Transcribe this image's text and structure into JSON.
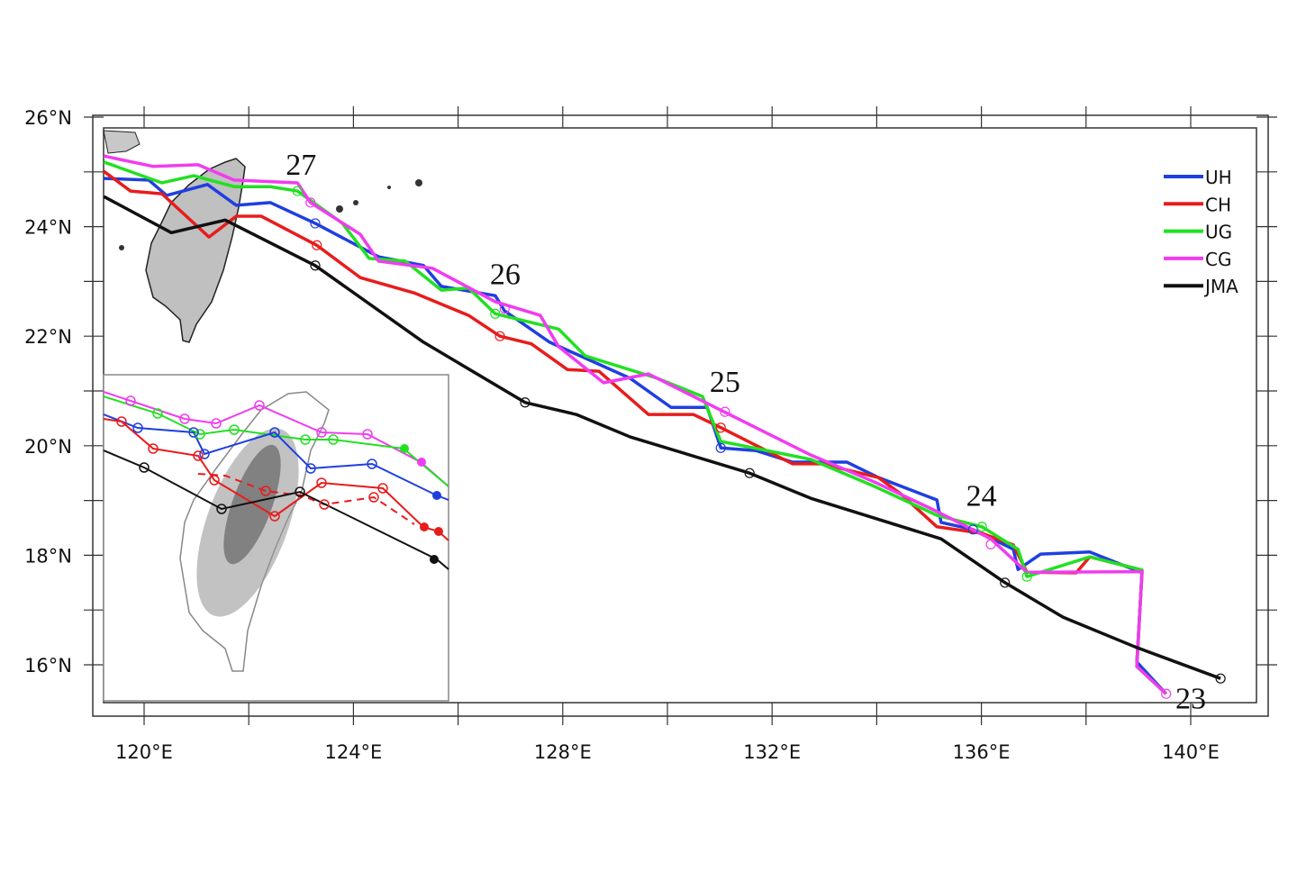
{
  "chart_data": {
    "type": "line",
    "title": "",
    "xlabel": "",
    "ylabel": "",
    "xlim": [
      119,
      141.5
    ],
    "ylim": [
      15.1,
      26
    ],
    "x_ticks": [
      {
        "v": 120,
        "label": "120°E"
      },
      {
        "v": 124,
        "label": "124°E"
      },
      {
        "v": 128,
        "label": "128°E"
      },
      {
        "v": 132,
        "label": "132°E"
      },
      {
        "v": 136,
        "label": "136°E"
      },
      {
        "v": 140,
        "label": "140°E"
      }
    ],
    "y_ticks": [
      {
        "v": 26,
        "label": "26°N"
      },
      {
        "v": 24,
        "label": "24°N"
      },
      {
        "v": 22,
        "label": "22°N"
      },
      {
        "v": 20,
        "label": "20°N"
      },
      {
        "v": 18,
        "label": "18°N"
      },
      {
        "v": 16,
        "label": "16°N"
      }
    ],
    "legend_position": "top-right",
    "day_labels": [
      {
        "text": "27",
        "lon": 123.0,
        "lat": 24.95
      },
      {
        "text": "26",
        "lon": 126.9,
        "lat": 22.95
      },
      {
        "text": "25",
        "lon": 131.1,
        "lat": 20.98
      },
      {
        "text": "24",
        "lon": 136.0,
        "lat": 18.9
      },
      {
        "text": "23",
        "lon": 140.0,
        "lat": 15.2
      }
    ],
    "series": [
      {
        "name": "UH",
        "color": "#1f3fe0",
        "points": [
          [
            119.23,
            24.88
          ],
          [
            120.09,
            24.85
          ],
          [
            120.43,
            24.57
          ],
          [
            121.21,
            24.77
          ],
          [
            121.76,
            24.39
          ],
          [
            122.41,
            24.44
          ],
          [
            123.27,
            24.06
          ],
          [
            124.48,
            23.45
          ],
          [
            125.34,
            23.29
          ],
          [
            125.68,
            22.91
          ],
          [
            126.71,
            22.74
          ],
          [
            126.89,
            22.46
          ],
          [
            127.75,
            21.89
          ],
          [
            129.29,
            21.23
          ],
          [
            130.07,
            20.7
          ],
          [
            130.76,
            20.7
          ],
          [
            131.02,
            19.96
          ],
          [
            131.7,
            19.91
          ],
          [
            132.39,
            19.7
          ],
          [
            133.43,
            19.7
          ],
          [
            134.03,
            19.42
          ],
          [
            135.15,
            19.01
          ],
          [
            135.23,
            18.6
          ],
          [
            135.84,
            18.47
          ],
          [
            136.61,
            18.11
          ],
          [
            136.7,
            17.74
          ],
          [
            137.13,
            18.02
          ],
          [
            138.07,
            18.06
          ],
          [
            139.07,
            17.68
          ],
          [
            138.97,
            16.05
          ],
          [
            139.53,
            15.47
          ]
        ]
      },
      {
        "name": "CH",
        "color": "#e81c1c",
        "points": [
          [
            119.23,
            25.01
          ],
          [
            119.74,
            24.65
          ],
          [
            120.34,
            24.6
          ],
          [
            121.24,
            23.81
          ],
          [
            121.76,
            24.19
          ],
          [
            122.24,
            24.19
          ],
          [
            123.3,
            23.66
          ],
          [
            124.13,
            23.07
          ],
          [
            125.16,
            22.79
          ],
          [
            126.2,
            22.38
          ],
          [
            126.8,
            22.0
          ],
          [
            127.4,
            21.86
          ],
          [
            128.09,
            21.39
          ],
          [
            128.69,
            21.36
          ],
          [
            129.64,
            20.57
          ],
          [
            130.5,
            20.57
          ],
          [
            131.02,
            20.33
          ],
          [
            132.39,
            19.67
          ],
          [
            132.94,
            19.67
          ],
          [
            134.03,
            19.42
          ],
          [
            134.46,
            19.12
          ],
          [
            135.15,
            18.52
          ],
          [
            136.01,
            18.4
          ],
          [
            136.61,
            18.19
          ],
          [
            136.87,
            17.69
          ],
          [
            137.81,
            17.68
          ],
          [
            138.07,
            17.97
          ],
          [
            139.07,
            17.73
          ],
          [
            138.97,
            15.97
          ],
          [
            139.53,
            15.47
          ]
        ]
      },
      {
        "name": "UG",
        "color": "#22e022",
        "points": [
          [
            119.23,
            25.18
          ],
          [
            120.34,
            24.8
          ],
          [
            120.95,
            24.93
          ],
          [
            121.72,
            24.73
          ],
          [
            122.41,
            24.73
          ],
          [
            122.93,
            24.65
          ],
          [
            123.79,
            24.06
          ],
          [
            124.3,
            23.42
          ],
          [
            124.99,
            23.37
          ],
          [
            125.68,
            22.84
          ],
          [
            126.2,
            22.88
          ],
          [
            126.71,
            22.41
          ],
          [
            127.92,
            22.13
          ],
          [
            128.43,
            21.64
          ],
          [
            129.81,
            21.23
          ],
          [
            130.67,
            20.9
          ],
          [
            131.02,
            20.08
          ],
          [
            132.74,
            19.75
          ],
          [
            133.95,
            19.26
          ],
          [
            135.15,
            18.73
          ],
          [
            136.01,
            18.52
          ],
          [
            136.7,
            18.11
          ],
          [
            136.87,
            17.61
          ],
          [
            138.07,
            17.97
          ],
          [
            139.07,
            17.73
          ],
          [
            138.97,
            15.97
          ],
          [
            139.53,
            15.47
          ]
        ]
      },
      {
        "name": "CG",
        "color": "#f03cf0",
        "points": [
          [
            119.23,
            25.29
          ],
          [
            120.17,
            25.1
          ],
          [
            121.03,
            25.13
          ],
          [
            121.72,
            24.85
          ],
          [
            122.93,
            24.8
          ],
          [
            123.18,
            24.44
          ],
          [
            124.13,
            23.86
          ],
          [
            124.48,
            23.37
          ],
          [
            125.51,
            23.24
          ],
          [
            126.71,
            22.63
          ],
          [
            127.57,
            22.38
          ],
          [
            127.92,
            21.81
          ],
          [
            128.78,
            21.15
          ],
          [
            129.64,
            21.31
          ],
          [
            131.02,
            20.65
          ],
          [
            132.74,
            19.83
          ],
          [
            133.95,
            19.34
          ],
          [
            135.15,
            18.8
          ],
          [
            136.18,
            18.3
          ],
          [
            136.87,
            17.69
          ],
          [
            139.07,
            17.7
          ],
          [
            138.97,
            15.97
          ],
          [
            139.53,
            15.47
          ]
        ]
      },
      {
        "name": "JMA",
        "color": "#111111",
        "points": [
          [
            119.23,
            24.55
          ],
          [
            120.52,
            23.89
          ],
          [
            121.55,
            24.12
          ],
          [
            123.27,
            23.29
          ],
          [
            125.34,
            21.89
          ],
          [
            127.28,
            20.79
          ],
          [
            128.26,
            20.57
          ],
          [
            129.29,
            20.16
          ],
          [
            131.57,
            19.5
          ],
          [
            132.74,
            19.04
          ],
          [
            135.23,
            18.3
          ],
          [
            136.45,
            17.5
          ],
          [
            137.56,
            16.87
          ],
          [
            138.93,
            16.33
          ],
          [
            140.57,
            15.75
          ]
        ]
      }
    ],
    "markers": [
      {
        "series": "JMA",
        "points": [
          [
            123.27,
            23.29
          ],
          [
            127.28,
            20.79
          ],
          [
            131.57,
            19.5
          ],
          [
            136.45,
            17.5
          ],
          [
            140.57,
            15.75
          ]
        ]
      },
      {
        "series": "CH",
        "points": [
          [
            123.3,
            23.66
          ],
          [
            126.8,
            22.0
          ],
          [
            131.02,
            20.33
          ]
        ]
      },
      {
        "series": "UH",
        "points": [
          [
            123.27,
            24.06
          ],
          [
            131.02,
            19.96
          ],
          [
            135.84,
            18.47
          ]
        ]
      },
      {
        "series": "UG",
        "points": [
          [
            122.93,
            24.65
          ],
          [
            126.71,
            22.41
          ],
          [
            136.01,
            18.52
          ],
          [
            136.87,
            17.61
          ]
        ]
      },
      {
        "series": "CG",
        "points": [
          [
            123.18,
            24.44
          ],
          [
            126.89,
            22.5
          ],
          [
            131.1,
            20.62
          ],
          [
            136.18,
            18.2
          ],
          [
            139.53,
            15.47
          ]
        ]
      }
    ]
  }
}
